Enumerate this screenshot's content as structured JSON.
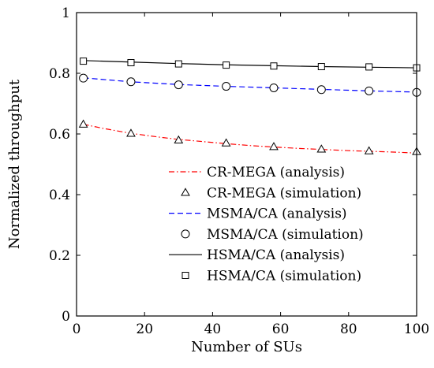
{
  "chart_data": {
    "type": "line",
    "xlabel": "Number of SUs",
    "ylabel": "Normalized throughput",
    "xlim": [
      0,
      100
    ],
    "ylim": [
      0,
      1
    ],
    "xticks": [
      0,
      20,
      40,
      60,
      80,
      100
    ],
    "yticks": [
      0,
      0.2,
      0.4,
      0.6,
      0.8,
      1
    ],
    "ytick_labels": [
      "0",
      "0.2",
      "0.4",
      "0.6",
      "0.8",
      "1"
    ],
    "grid": false,
    "legend_position": "bottom-right",
    "series": [
      {
        "name": "CR-MEGA (analysis)",
        "kind": "line",
        "style": "dashdot",
        "color": "#ff0000",
        "x": [
          2,
          8,
          16,
          24,
          30,
          38,
          44,
          52,
          58,
          66,
          72,
          80,
          86,
          94,
          100
        ],
        "y": [
          0.632,
          0.618,
          0.602,
          0.59,
          0.582,
          0.574,
          0.568,
          0.561,
          0.557,
          0.552,
          0.549,
          0.545,
          0.543,
          0.54,
          0.537
        ]
      },
      {
        "name": "CR-MEGA (simulation)",
        "kind": "marker",
        "marker": "triangle",
        "color": "#000000",
        "x": [
          2,
          16,
          30,
          44,
          58,
          72,
          86,
          100
        ],
        "y": [
          0.632,
          0.602,
          0.58,
          0.57,
          0.558,
          0.55,
          0.544,
          0.542
        ]
      },
      {
        "name": "MSMA/CA (analysis)",
        "kind": "line",
        "style": "dashed",
        "color": "#0000ff",
        "x": [
          2,
          16,
          30,
          44,
          58,
          72,
          86,
          100
        ],
        "y": [
          0.785,
          0.772,
          0.763,
          0.757,
          0.752,
          0.747,
          0.742,
          0.738
        ]
      },
      {
        "name": "MSMA/CA (simulation)",
        "kind": "marker",
        "marker": "circle",
        "color": "#000000",
        "x": [
          2,
          16,
          30,
          44,
          58,
          72,
          86,
          100
        ],
        "y": [
          0.784,
          0.772,
          0.762,
          0.757,
          0.752,
          0.746,
          0.742,
          0.737
        ]
      },
      {
        "name": "HSMA/CA (analysis)",
        "kind": "line",
        "style": "solid",
        "color": "#000000",
        "x": [
          2,
          16,
          30,
          44,
          58,
          72,
          86,
          100
        ],
        "y": [
          0.842,
          0.837,
          0.832,
          0.828,
          0.825,
          0.822,
          0.82,
          0.818
        ]
      },
      {
        "name": "HSMA/CA (simulation)",
        "kind": "marker",
        "marker": "square",
        "color": "#000000",
        "x": [
          2,
          16,
          30,
          44,
          58,
          72,
          86,
          100
        ],
        "y": [
          0.84,
          0.835,
          0.831,
          0.827,
          0.824,
          0.822,
          0.821,
          0.818
        ]
      }
    ]
  }
}
